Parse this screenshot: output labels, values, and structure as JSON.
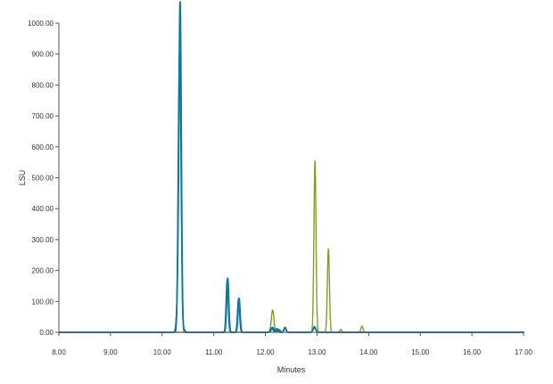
{
  "chart_data": {
    "type": "line",
    "title": "",
    "xlabel": "Minutes",
    "ylabel": "LSU",
    "xlim": [
      8.0,
      17.0
    ],
    "ylim": [
      0,
      1000
    ],
    "x_ticks": [
      "8.00",
      "9.00",
      "10.00",
      "11.00",
      "12.00",
      "13.00",
      "14.00",
      "15.00",
      "16.00",
      "17.00"
    ],
    "y_ticks": [
      "0.00",
      "100.00",
      "200.00",
      "300.00",
      "400.00",
      "500.00",
      "600.00",
      "700.00",
      "800.00",
      "900.00",
      "1000.00"
    ],
    "grid": false,
    "legend": "none",
    "series": [
      {
        "color": "#8a9a2a",
        "peaks": [
          {
            "x": 12.14,
            "y": 72,
            "w": 0.025
          },
          {
            "x": 12.28,
            "y": 8,
            "w": 0.02
          },
          {
            "x": 12.38,
            "y": 14,
            "w": 0.02
          },
          {
            "x": 12.96,
            "y": 555,
            "w": 0.02
          },
          {
            "x": 13.22,
            "y": 270,
            "w": 0.02
          },
          {
            "x": 13.46,
            "y": 9,
            "w": 0.02
          },
          {
            "x": 13.87,
            "y": 20,
            "w": 0.02
          }
        ]
      },
      {
        "color": "#1a6b8c",
        "peaks": [
          {
            "x": 10.33,
            "y": 740,
            "w": 0.022
          },
          {
            "x": 10.36,
            "y": 380,
            "w": 0.02
          },
          {
            "x": 10.42,
            "y": 10,
            "w": 0.02
          },
          {
            "x": 11.26,
            "y": 168,
            "w": 0.02
          },
          {
            "x": 11.48,
            "y": 108,
            "w": 0.02
          },
          {
            "x": 12.12,
            "y": 14,
            "w": 0.025
          },
          {
            "x": 12.22,
            "y": 12,
            "w": 0.02
          },
          {
            "x": 12.38,
            "y": 14,
            "w": 0.02
          },
          {
            "x": 12.95,
            "y": 15,
            "w": 0.025
          }
        ]
      },
      {
        "color": "#0b7aa3",
        "peaks": [
          {
            "x": 10.35,
            "y": 865,
            "w": 0.022
          },
          {
            "x": 10.33,
            "y": 250,
            "w": 0.03
          },
          {
            "x": 11.27,
            "y": 175,
            "w": 0.02
          },
          {
            "x": 11.49,
            "y": 110,
            "w": 0.02
          },
          {
            "x": 12.14,
            "y": 16,
            "w": 0.025
          },
          {
            "x": 12.25,
            "y": 10,
            "w": 0.02
          },
          {
            "x": 12.38,
            "y": 16,
            "w": 0.02
          },
          {
            "x": 12.95,
            "y": 18,
            "w": 0.025
          }
        ]
      }
    ]
  }
}
